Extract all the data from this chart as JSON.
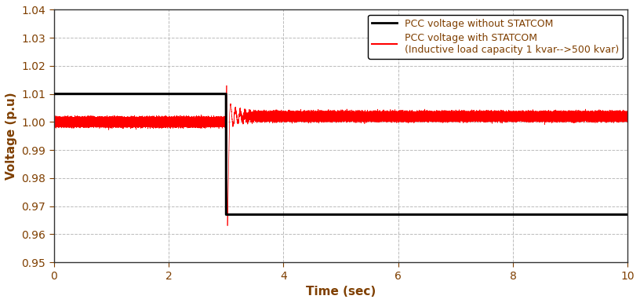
{
  "title": "",
  "xlabel": "Time (sec)",
  "ylabel": "Voltage (p.u)",
  "xlim": [
    0,
    10
  ],
  "ylim": [
    0.95,
    1.04
  ],
  "yticks": [
    0.95,
    0.96,
    0.97,
    0.98,
    0.99,
    1.0,
    1.01,
    1.02,
    1.03,
    1.04
  ],
  "xticks": [
    0,
    2,
    4,
    6,
    8,
    10
  ],
  "switch_time": 3.0,
  "black_before": 1.01,
  "black_after": 0.967,
  "red_before_mean": 1.0,
  "red_before_noise": 0.0012,
  "red_after_mean": 1.002,
  "red_after_noise": 0.0012,
  "red_transient_low": 0.963,
  "red_transient_high": 1.013,
  "legend_label_1": "PCC voltage without STATCOM",
  "legend_label_2": "PCC voltage with STATCOM\n(Inductive load capacity 1 kvar-->500 kvar)",
  "background_color": "#ffffff",
  "grid_color": "#bbbbbb",
  "xlabel_color": "#7f3f00",
  "ylabel_color": "#7f3f00",
  "tick_color": "#7f3f00",
  "legend_text_color": "#7f3f00",
  "figwidth": 8.16,
  "figheight": 3.86,
  "dpi": 100
}
